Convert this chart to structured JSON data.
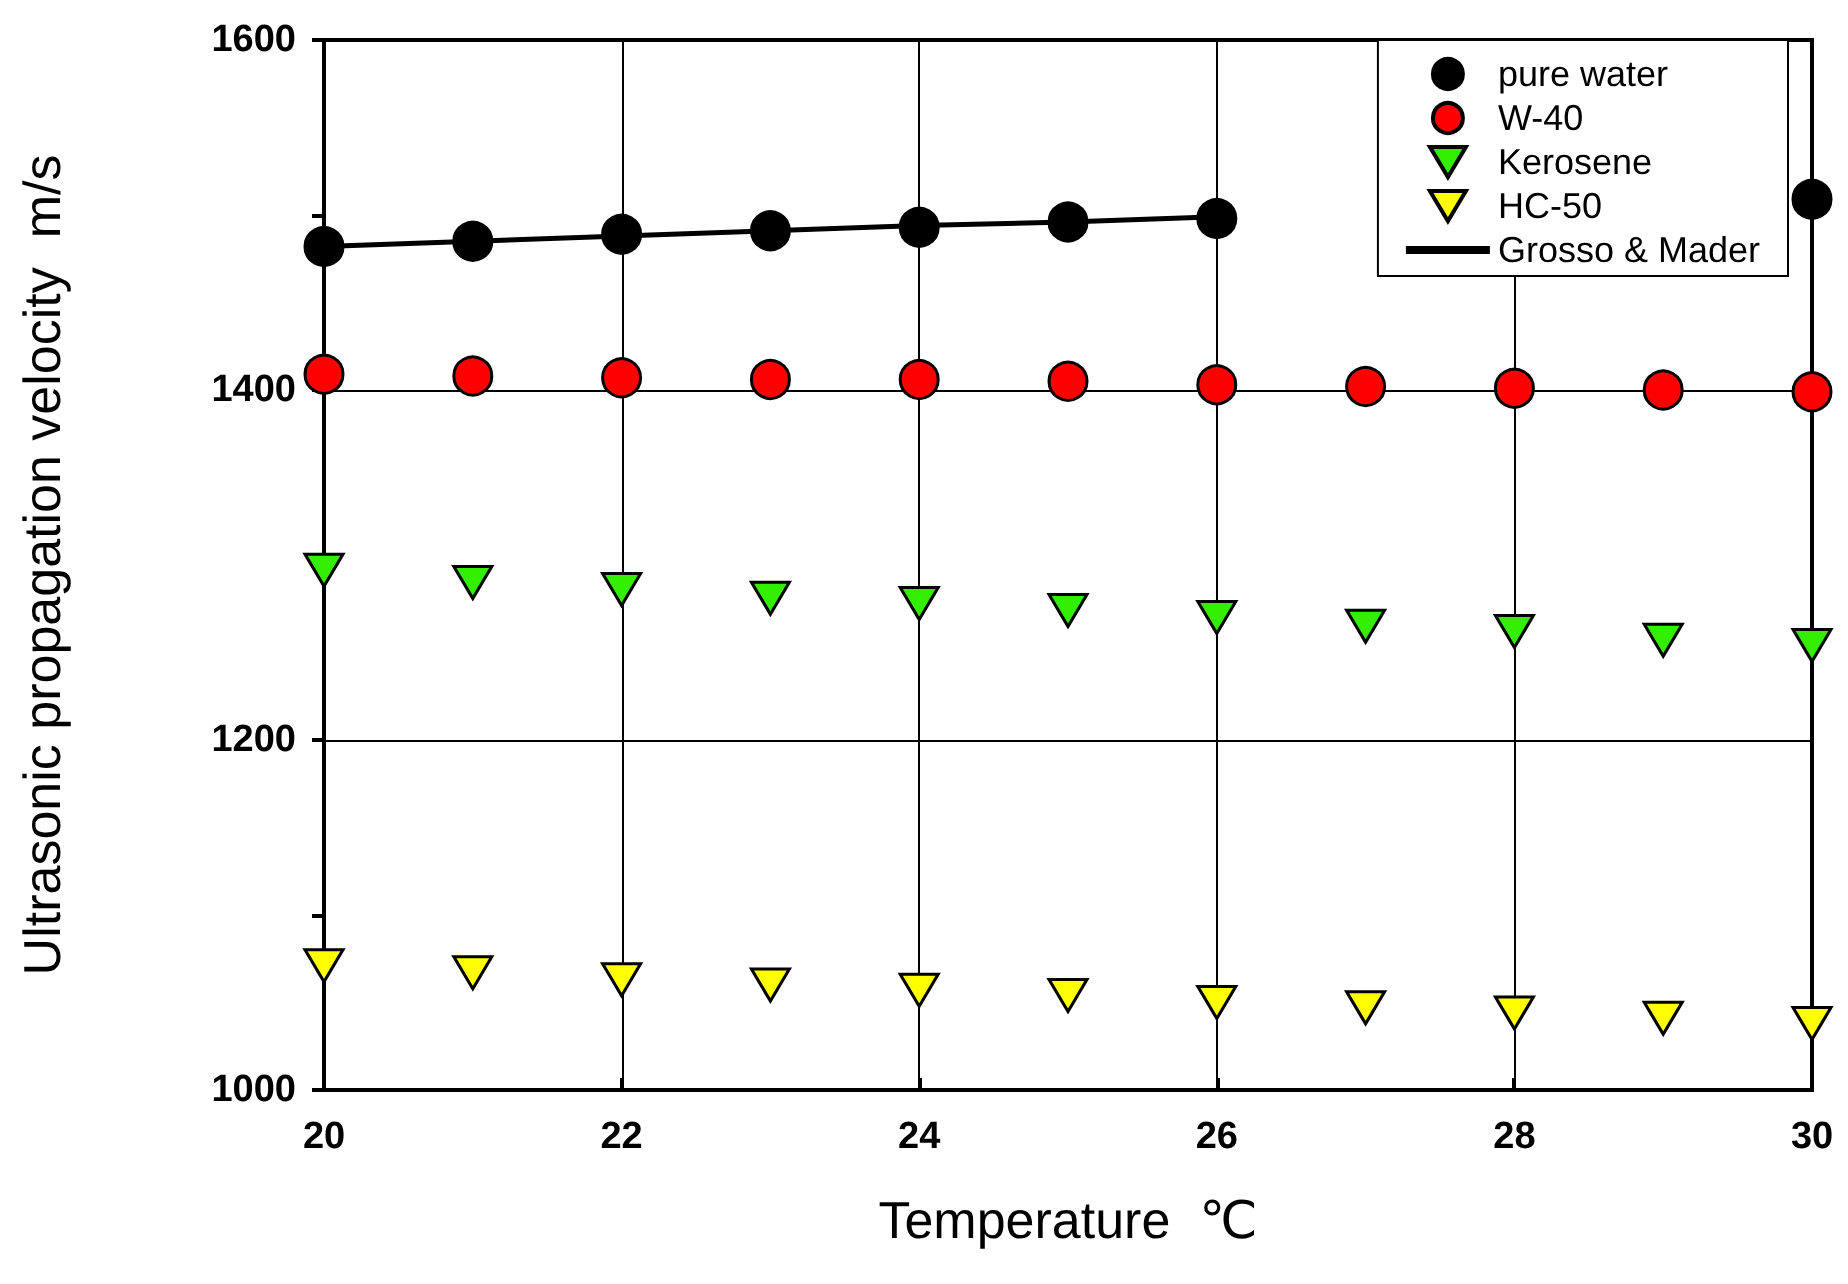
{
  "chart_data": {
    "type": "scatter",
    "xlabel": "Temperature  ℃",
    "ylabel": "Ultrasonic propagation velocity  m/s",
    "x": [
      20,
      21,
      22,
      23,
      24,
      25,
      26,
      27,
      28,
      29,
      30
    ],
    "series": [
      {
        "name": "pure water",
        "color": "#000000",
        "marker": "circle",
        "values": [
          1482,
          1485,
          1489,
          1491,
          1493,
          1496,
          1498,
          null,
          null,
          null,
          1509
        ]
      },
      {
        "name": "W-40",
        "color": "#ff0000",
        "marker": "circle",
        "values": [
          1409,
          1408,
          1407,
          1406,
          1406,
          1405,
          1403,
          1402,
          1401,
          1400,
          1399
        ]
      },
      {
        "name": "Kerosene",
        "color": "#33ee00",
        "marker": "triangle",
        "values": [
          1297,
          1290,
          1286,
          1281,
          1278,
          1274,
          1270,
          1265,
          1262,
          1257,
          1254
        ]
      },
      {
        "name": "HC-50",
        "color": "#ffff00",
        "marker": "triangle",
        "values": [
          1071,
          1067,
          1063,
          1060,
          1057,
          1054,
          1050,
          1047,
          1044,
          1041,
          1038
        ]
      },
      {
        "name": "Grosso & Mader",
        "type": "line",
        "color": "#000000",
        "marker": "none",
        "line_style": "solid",
        "x": [
          20,
          21,
          22,
          23,
          24,
          25,
          26
        ],
        "values": [
          1482,
          1485,
          1488,
          1491,
          1494,
          1496,
          1499
        ]
      }
    ],
    "xlim": [
      20,
      30
    ],
    "xticks": [
      20,
      22,
      24,
      26,
      28,
      30
    ],
    "ylim": [
      1000,
      1600
    ],
    "yticks": [
      1000,
      {
        "value": 1100,
        "label": null
      },
      1200,
      {
        "value": 1300,
        "label": null
      },
      1400,
      {
        "value": 1500,
        "label": null
      },
      1600
    ],
    "grid": true,
    "legend": "top right"
  }
}
